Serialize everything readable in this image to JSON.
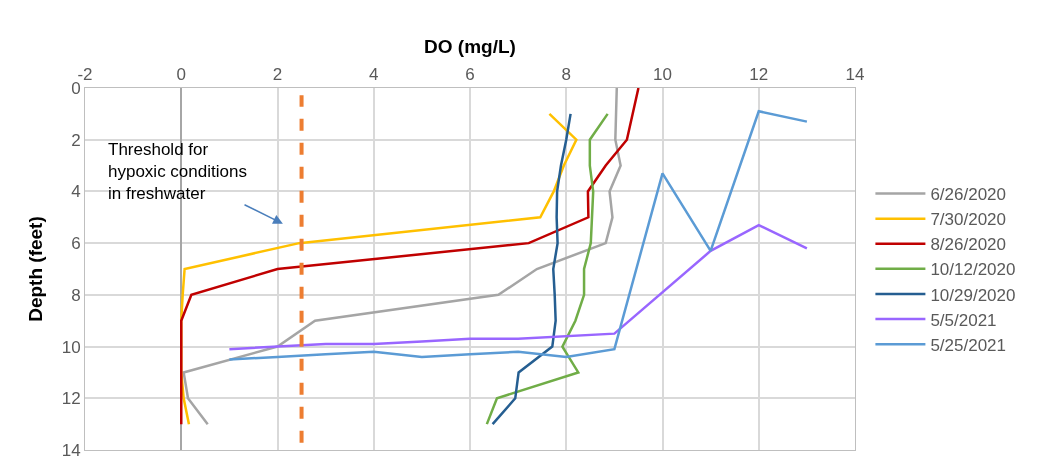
{
  "chart_data": {
    "type": "line",
    "xlabel": "DO (mg/L)",
    "ylabel": "Depth (feet)",
    "xlim": [
      -2,
      14
    ],
    "xticks": [
      -2,
      0,
      2,
      4,
      6,
      8,
      10,
      12,
      14
    ],
    "ylim": [
      14,
      0
    ],
    "yticks": [
      0,
      2,
      4,
      6,
      8,
      10,
      12,
      14
    ],
    "grid": true,
    "legend": "right",
    "marker": "none",
    "line_style": "solid",
    "series": [
      {
        "name": "6/26/2020",
        "color": "#a5a5a5",
        "x": [
          9.05,
          9.02,
          9.13,
          8.9,
          8.96,
          8.82,
          7.39,
          6.59,
          2.78,
          2.0,
          0.05,
          0.14,
          0.55
        ],
        "values": [
          0,
          2,
          3,
          4,
          5,
          6,
          7,
          8,
          9,
          10,
          11,
          12,
          13
        ]
      },
      {
        "name": "7/30/2020",
        "color": "#ffc000",
        "x": [
          7.65,
          8.21,
          7.95,
          7.74,
          7.46,
          2.45,
          0.07,
          0.03,
          0.0,
          0.0,
          0.0,
          0.05,
          0.16
        ],
        "values": [
          1,
          2,
          3,
          4,
          5,
          6,
          7,
          8,
          9,
          10,
          11,
          12,
          13
        ]
      },
      {
        "name": "8/26/2020",
        "color": "#c00000",
        "x": [
          9.5,
          9.26,
          8.82,
          8.45,
          8.46,
          7.22,
          2.0,
          0.21,
          0.0,
          0.0,
          0.0,
          0.0,
          0.0
        ],
        "values": [
          0,
          2,
          3,
          4,
          5,
          6,
          7,
          8,
          9,
          10,
          11,
          12,
          13
        ]
      },
      {
        "name": "10/12/2020",
        "color": "#70ad47",
        "x": [
          8.86,
          8.49,
          8.49,
          8.56,
          8.51,
          8.37,
          8.37,
          8.19,
          7.92,
          8.25,
          6.56,
          6.35
        ],
        "values": [
          1,
          2,
          3,
          4,
          6,
          7,
          8,
          9,
          10,
          11,
          12,
          13
        ]
      },
      {
        "name": "10/29/2020",
        "color": "#255e91",
        "x": [
          8.09,
          8.0,
          7.89,
          7.81,
          7.8,
          7.82,
          7.73,
          7.76,
          7.78,
          7.71,
          7.01,
          6.94,
          6.47
        ],
        "values": [
          1,
          2,
          3,
          4,
          5,
          6,
          7,
          8,
          9,
          10,
          11,
          12,
          13
        ]
      },
      {
        "name": "5/5/2021",
        "color": "#9966ff",
        "x": [
          1.0,
          3.0,
          4.0,
          5.0,
          6.0,
          7.0,
          9.0,
          11.0,
          12.0,
          13.0
        ],
        "values": [
          10.1,
          9.9,
          9.9,
          9.8,
          9.7,
          9.7,
          9.5,
          6.3,
          5.3,
          6.2
        ]
      },
      {
        "name": "5/25/2021",
        "color": "#5b9bd5",
        "x": [
          1.0,
          2.0,
          3.0,
          4.0,
          5.0,
          6.0,
          7.0,
          8.0,
          9.0,
          10.0,
          11.0,
          12.0,
          13.0
        ],
        "values": [
          10.5,
          10.4,
          10.3,
          10.2,
          10.4,
          10.3,
          10.2,
          10.4,
          10.1,
          3.3,
          6.3,
          0.9,
          1.3
        ]
      }
    ],
    "ref_lines": [
      {
        "axis": "x",
        "value": 2.5,
        "color": "#ed7d31",
        "line_style": "dashed"
      }
    ],
    "annotations": [
      "Threshold for\nhypoxic conditions\nin freshwater"
    ]
  }
}
